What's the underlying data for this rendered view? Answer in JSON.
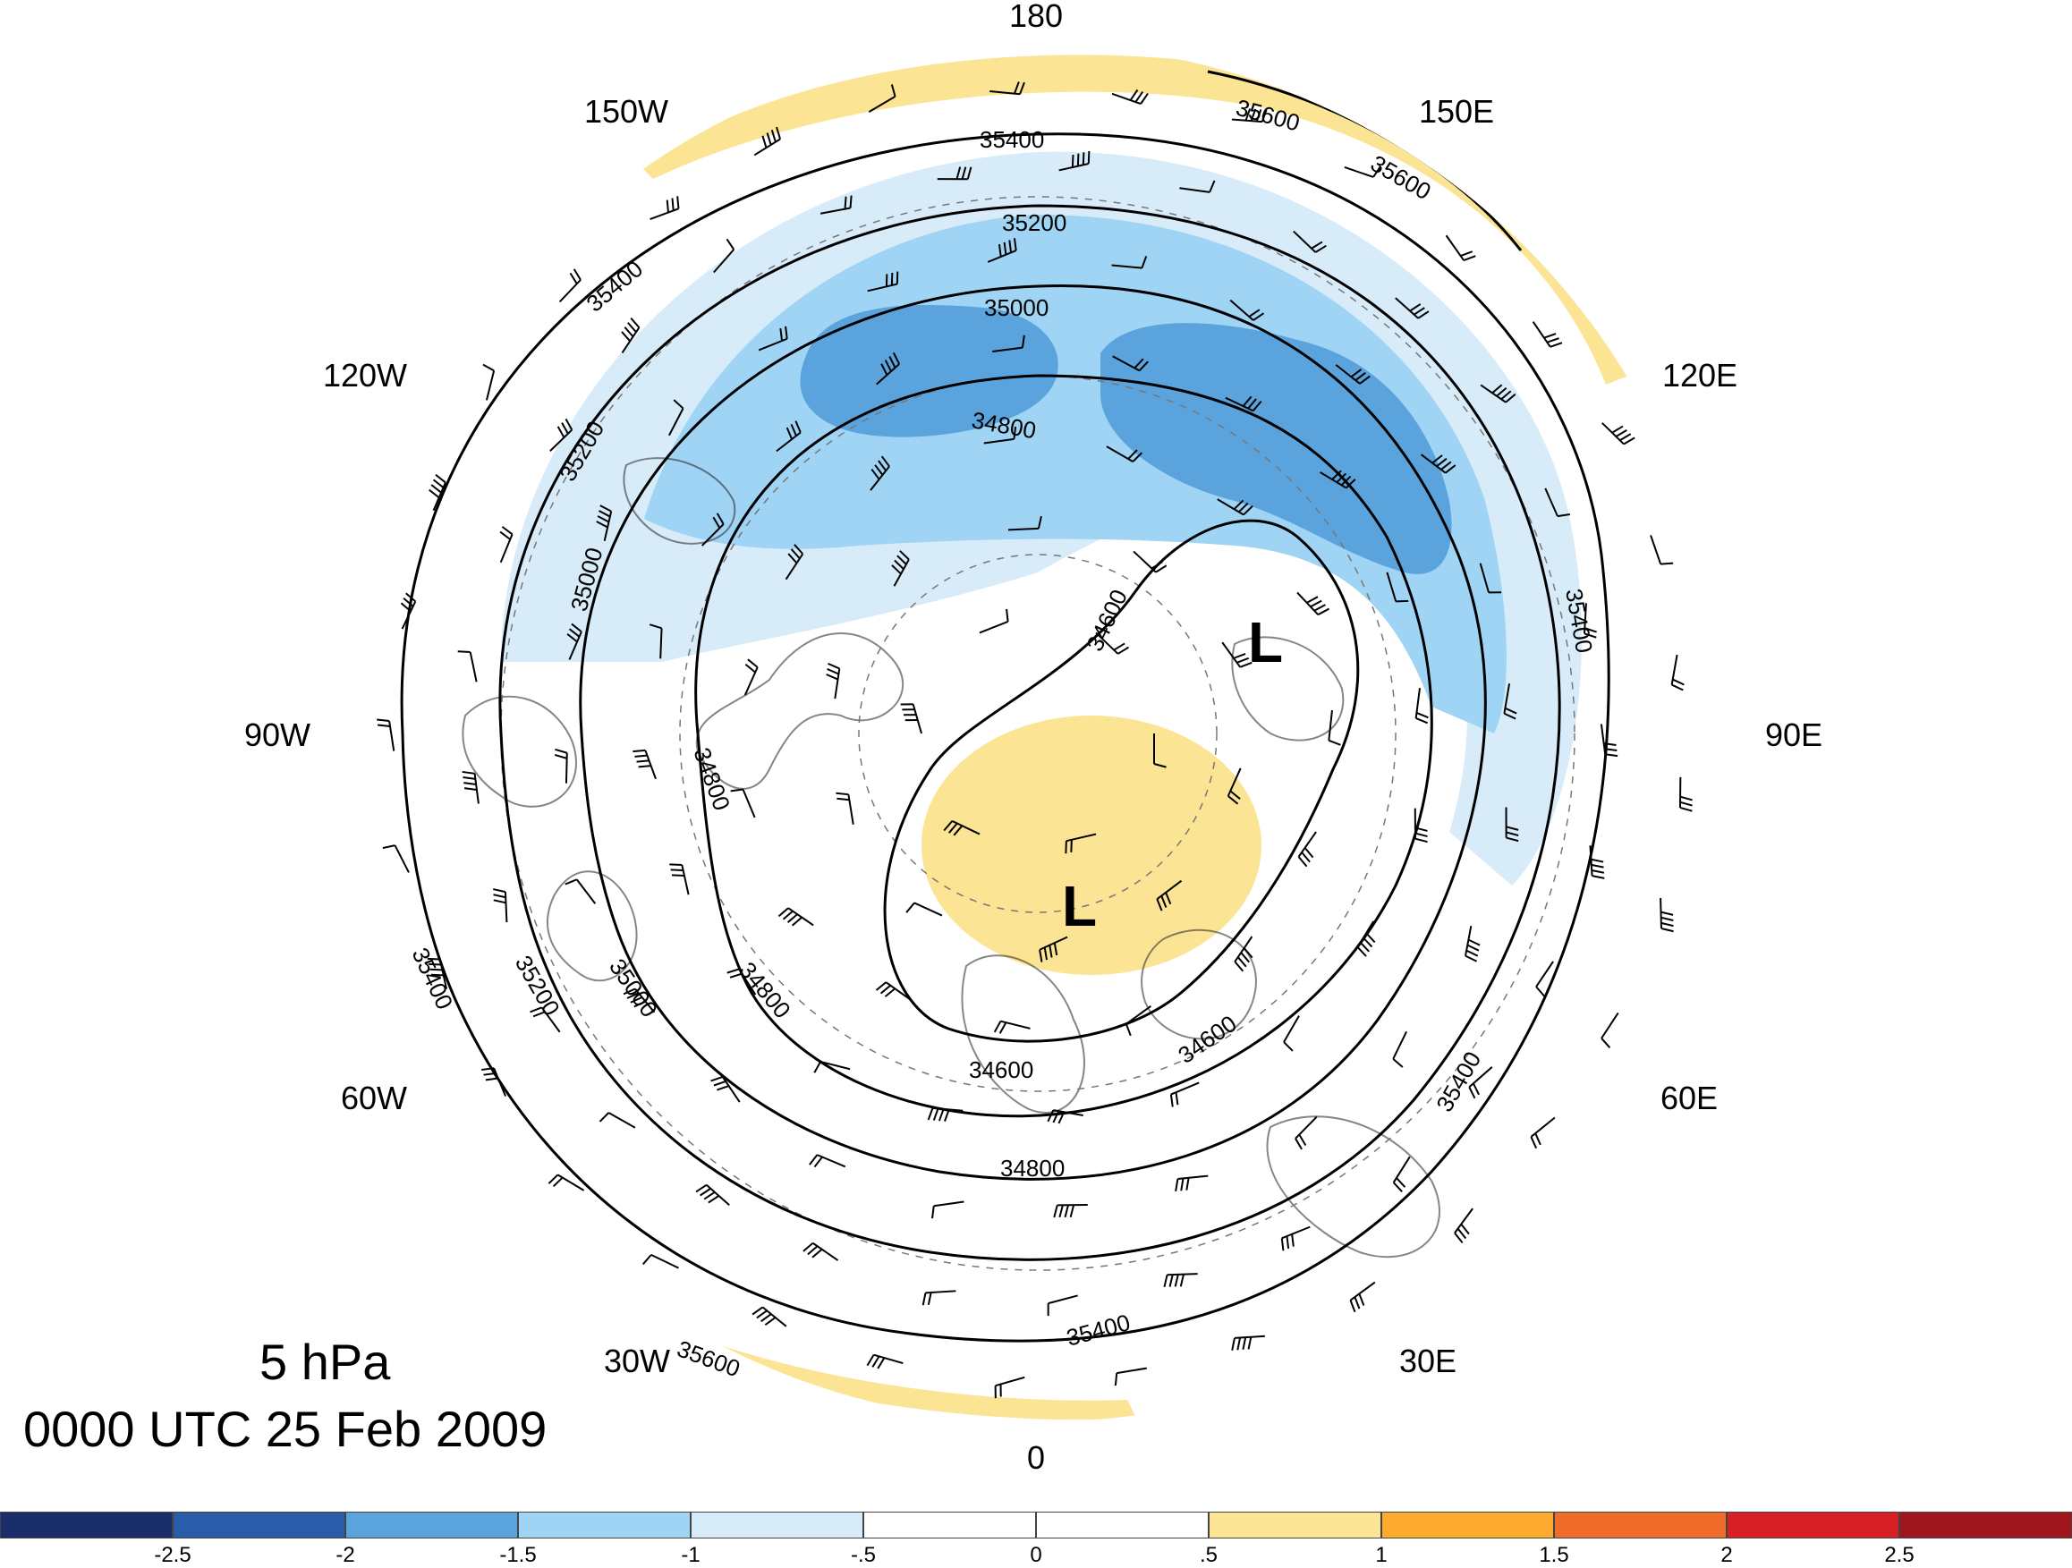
{
  "title": {
    "level": "5 hPa",
    "time": "0000 UTC 25 Feb 2009"
  },
  "longitude_labels": [
    {
      "id": "lon-180",
      "text": "180"
    },
    {
      "id": "lon-150e",
      "text": "150E"
    },
    {
      "id": "lon-120e",
      "text": "120E"
    },
    {
      "id": "lon-90e",
      "text": "90E"
    },
    {
      "id": "lon-60e",
      "text": "60E"
    },
    {
      "id": "lon-30e",
      "text": "30E"
    },
    {
      "id": "lon-0",
      "text": "0"
    },
    {
      "id": "lon-30w",
      "text": "30W"
    },
    {
      "id": "lon-60w",
      "text": "60W"
    },
    {
      "id": "lon-90w",
      "text": "90W"
    },
    {
      "id": "lon-120w",
      "text": "120W"
    },
    {
      "id": "lon-150w",
      "text": "150W"
    }
  ],
  "pressure_centers": [
    "L",
    "L"
  ],
  "contour_labels": [
    "35600",
    "35600",
    "35400",
    "35200",
    "35000",
    "34800",
    "34600",
    "35400",
    "35200",
    "35000",
    "34800",
    "34600",
    "35400",
    "35200",
    "35000",
    "34800",
    "34800",
    "34600",
    "35400",
    "35400",
    "35400",
    "35600"
  ],
  "colorbar": {
    "ticks": [
      "-2.5",
      "-2",
      "-1.5",
      "-1",
      "-.5",
      "0",
      ".5",
      "1",
      "1.5",
      "2",
      "2.5"
    ],
    "colors": [
      "#1a2d6b",
      "#2a5caa",
      "#5aa3dc",
      "#9fd4f4",
      "#d7ecf8",
      "#ffffff",
      "#ffffff",
      "#fbe494",
      "#fcab2e",
      "#f06c2a",
      "#d91f26",
      "#a0161d"
    ]
  },
  "shading_colors": {
    "dark_blue": "#5aa3dc",
    "mid_blue": "#9fd4f4",
    "light_blue": "#d7ecf8",
    "yellow": "#fbe494"
  }
}
